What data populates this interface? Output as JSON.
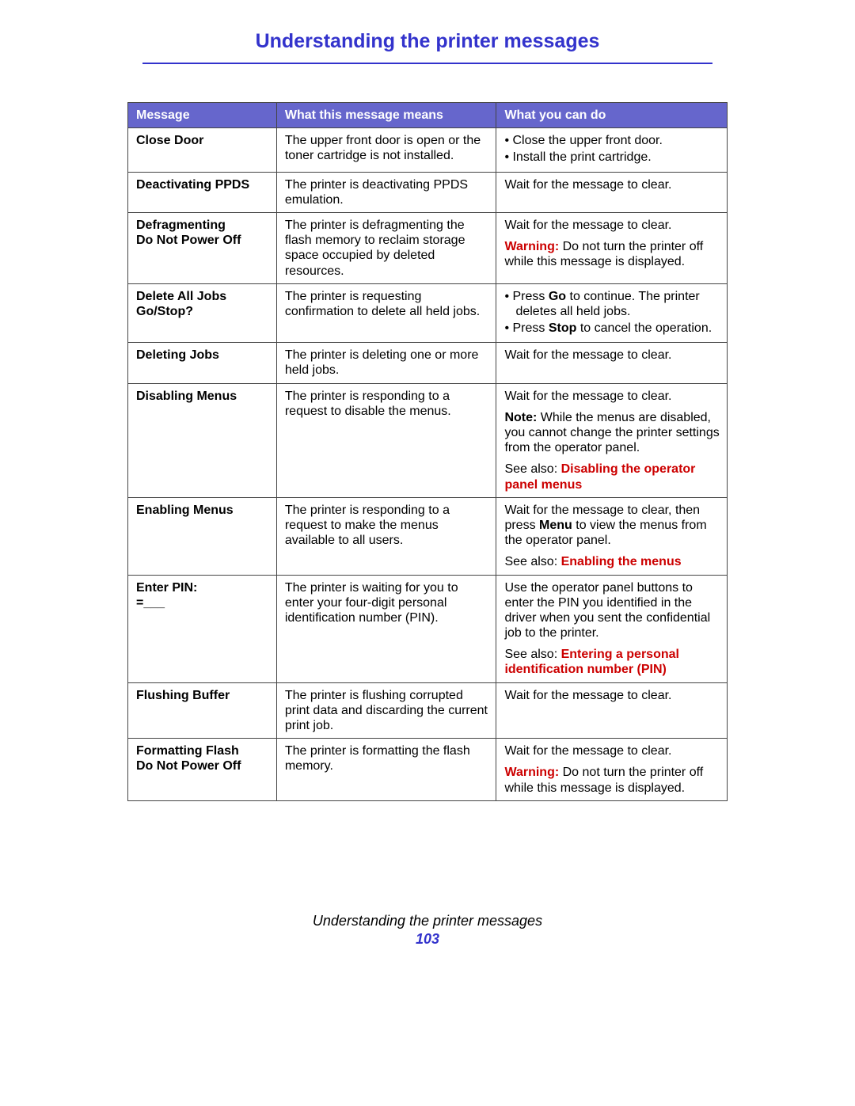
{
  "page": {
    "title": "Understanding the printer messages",
    "footer_title": "Understanding the printer messages",
    "footer_number": "103"
  },
  "columns": [
    "Message",
    "What this message means",
    "What you can do"
  ],
  "rows": {
    "close_door": {
      "msg": "Close Door",
      "means": "The upper front door is open or the toner cartridge is not installed.",
      "do_b1": "Close the upper front door.",
      "do_b2": "Install the print cartridge."
    },
    "deactivating_ppds": {
      "msg": "Deactivating PPDS",
      "means": "The printer is deactivating PPDS emulation.",
      "do": "Wait for the message to clear."
    },
    "defragmenting": {
      "msg_l1": "Defragmenting",
      "msg_l2": "Do Not Power Off",
      "means": "The printer is defragmenting the flash memory to reclaim storage space occupied by deleted resources.",
      "do_l1": "Wait for the message to clear.",
      "do_warn_label": "Warning:",
      "do_warn_text": " Do not turn the printer off while this message is displayed."
    },
    "delete_all": {
      "msg_l1": "Delete All Jobs",
      "msg_l2": "Go/Stop?",
      "means": "The printer is requesting confirmation to delete all held jobs.",
      "do_b1a": "Press ",
      "do_b1b": "Go",
      "do_b1c": " to continue. The printer deletes all held jobs.",
      "do_b2a": "Press ",
      "do_b2b": "Stop",
      "do_b2c": " to cancel the operation."
    },
    "deleting_jobs": {
      "msg": "Deleting Jobs",
      "means": "The printer is deleting one or more held jobs.",
      "do": "Wait for the message to clear."
    },
    "disabling_menus": {
      "msg": "Disabling Menus",
      "means": "The printer is responding to a request to disable the menus.",
      "do_l1": "Wait for the message to clear.",
      "do_note_label": "Note:",
      "do_note_text": " While the menus are disabled, you cannot change the printer settings from the operator panel.",
      "do_see": "See also: ",
      "do_link": "Disabling the operator panel menus"
    },
    "enabling_menus": {
      "msg": "Enabling Menus",
      "means": "The printer is responding to a request to make the menus available to all users.",
      "do_l1a": "Wait for the message to clear, then press ",
      "do_l1b": "Menu",
      "do_l1c": " to view the menus from the operator panel.",
      "do_see": "See also: ",
      "do_link": "Enabling the menus"
    },
    "enter_pin": {
      "msg_l1": "Enter PIN:",
      "msg_l2": "=___",
      "means": "The printer is waiting for you to enter your four-digit personal identification number (PIN).",
      "do_l1": "Use the operator panel buttons to enter the PIN you identified in the driver when you sent the confidential job to the printer.",
      "do_see": "See also: ",
      "do_link": "Entering a personal identification number (PIN)"
    },
    "flushing_buffer": {
      "msg": "Flushing Buffer",
      "means": "The printer is flushing corrupted print data and discarding the current print job.",
      "do": "Wait for the message to clear."
    },
    "formatting_flash": {
      "msg_l1": "Formatting Flash",
      "msg_l2": "Do Not Power Off",
      "means": "The printer is formatting the flash memory.",
      "do_l1": "Wait for the message to clear.",
      "do_warn_label": "Warning:",
      "do_warn_text": " Do not turn the printer off while this message is displayed."
    }
  }
}
